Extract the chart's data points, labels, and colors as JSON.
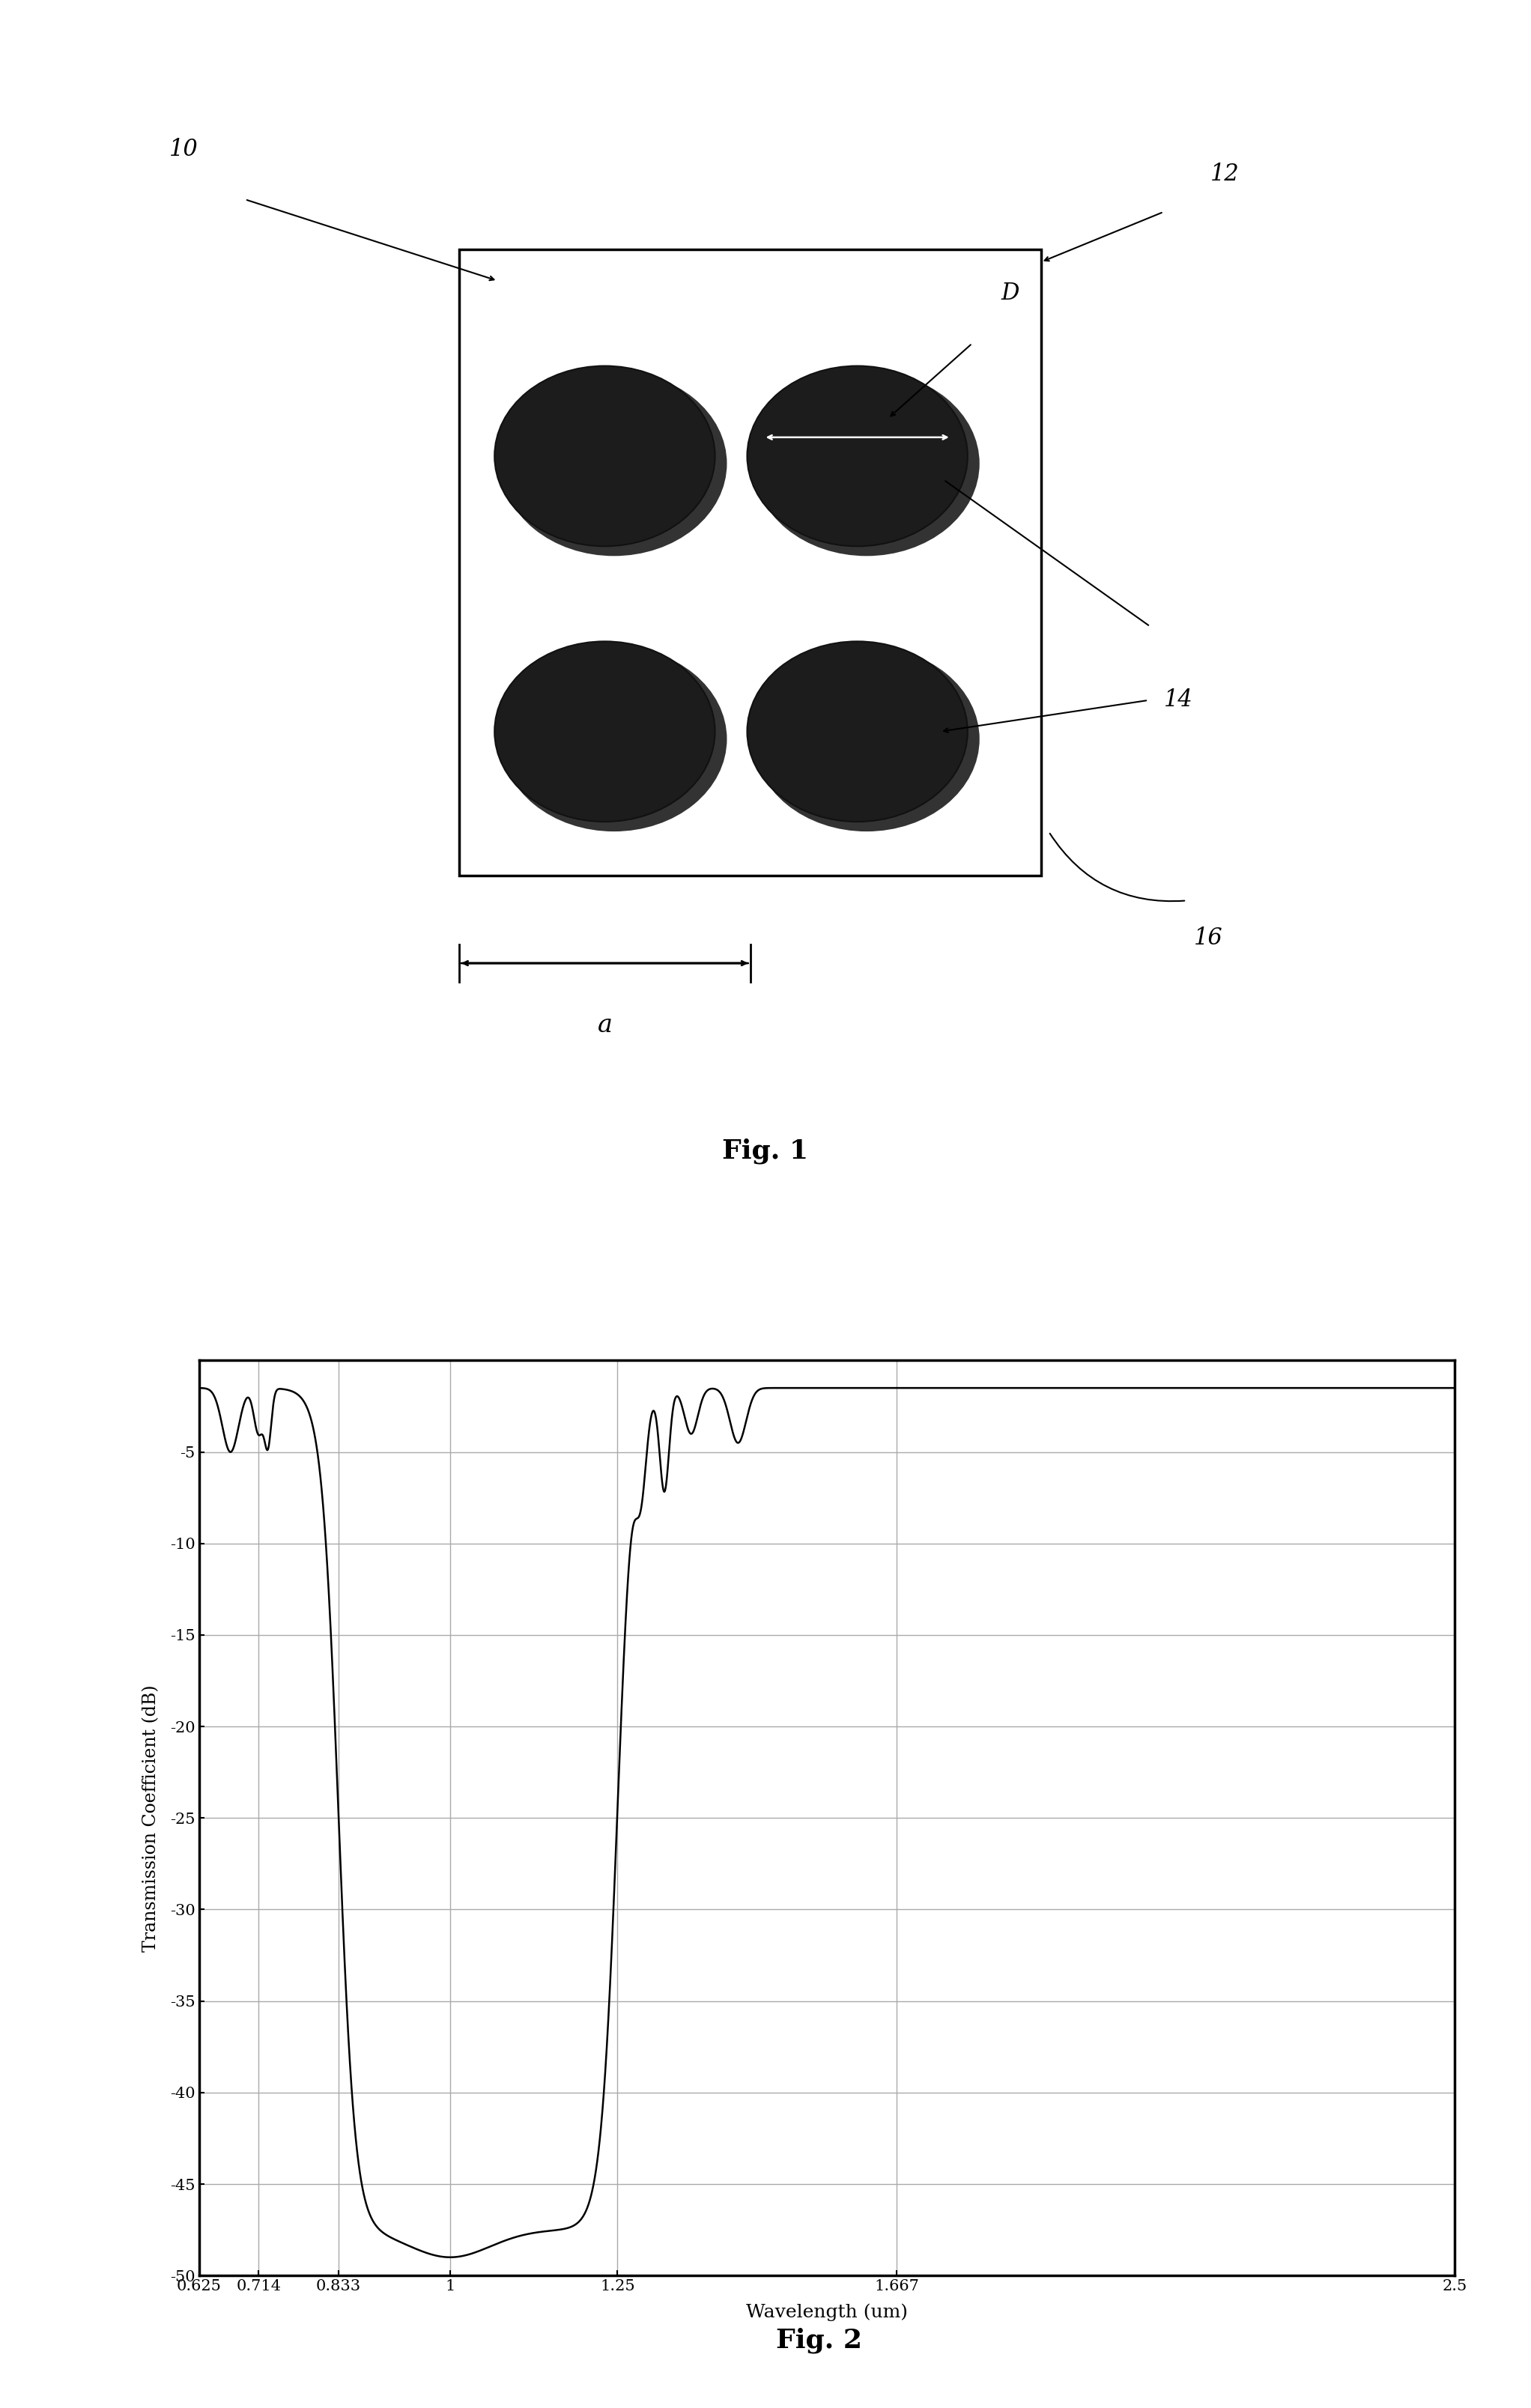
{
  "fig1_label": "Fig. 1",
  "fig2_label": "Fig. 2",
  "fig1_caption_fontsize": 26,
  "fig2_caption_fontsize": 26,
  "label_10": "10",
  "label_12": "12",
  "label_14": "14",
  "label_16": "16",
  "label_D": "D",
  "label_a": "a",
  "plot_xlabel": "Wavelength (um)",
  "plot_ylabel": "Transmission Coefficient (dB)",
  "plot_xlim": [
    0.625,
    2.5
  ],
  "plot_ylim": [
    -50,
    0
  ],
  "plot_xticks": [
    0.625,
    0.714,
    0.833,
    1.0,
    1.25,
    1.667,
    2.5
  ],
  "plot_xtick_labels": [
    "0.625",
    "0.714",
    "0.833",
    "1",
    "1.25",
    "1.667",
    "2.5"
  ],
  "plot_yticks": [
    -50,
    -45,
    -40,
    -35,
    -30,
    -25,
    -20,
    -15,
    -10,
    -5,
    0
  ],
  "plot_ytick_labels": [
    "-50",
    "-45",
    "-40",
    "-35",
    "-30",
    "-25",
    "-20",
    "-15",
    "-10",
    "-5",
    ""
  ],
  "line_color": "#000000",
  "grid_color": "#aaaaaa",
  "background_color": "#ffffff"
}
